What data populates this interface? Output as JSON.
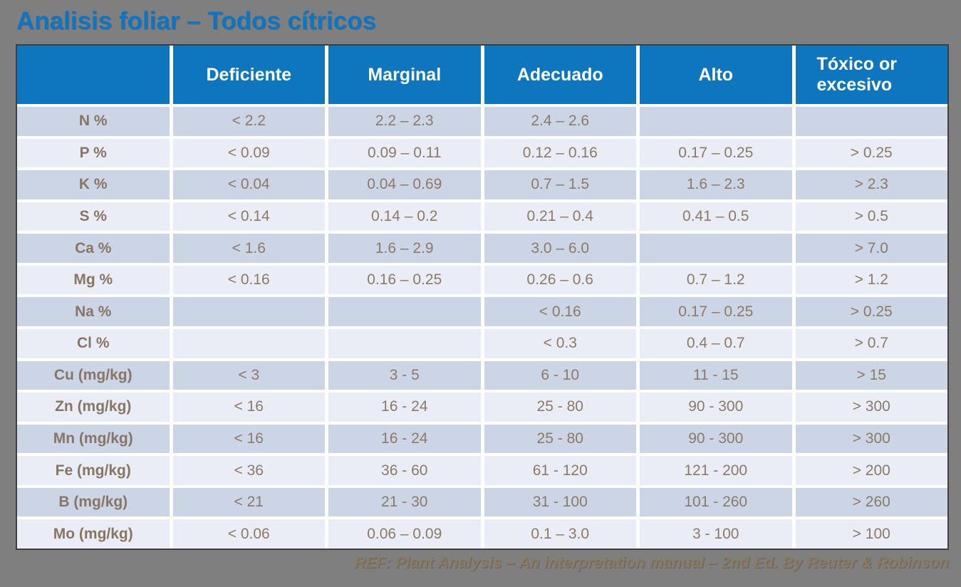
{
  "title": "Analisis foliar – Todos cítricos",
  "footer": "REF: Plant Analysis – An interpretation manual – 2nd Ed. By Reuter & Robinson",
  "colors": {
    "background": "#7f7f7f",
    "title_blue": "#0c76c2",
    "header_blue": "#0d76be",
    "header_text": "#ffffff",
    "row_dark": "#ccd5e6",
    "row_light": "#eaedf5",
    "cell_text": "#8b7a67",
    "footer_text": "#8a7a5f",
    "table_border": "#3f3f3f"
  },
  "chart_data": {
    "type": "table",
    "columns": [
      "",
      "Deficiente",
      "Marginal",
      "Adecuado",
      "Alto",
      "Tóxico or excesivo"
    ],
    "rows": [
      {
        "label": "N %",
        "values": [
          "< 2.2",
          "2.2 – 2.3",
          "2.4 – 2.6",
          "",
          ""
        ]
      },
      {
        "label": "P %",
        "values": [
          "< 0.09",
          "0.09 – 0.11",
          "0.12 – 0.16",
          "0.17 – 0.25",
          "> 0.25"
        ]
      },
      {
        "label": "K %",
        "values": [
          "< 0.04",
          "0.04 – 0.69",
          "0.7 – 1.5",
          "1.6 – 2.3",
          "> 2.3"
        ]
      },
      {
        "label": "S %",
        "values": [
          "< 0.14",
          "0.14 – 0.2",
          "0.21 – 0.4",
          "0.41 – 0.5",
          "> 0.5"
        ]
      },
      {
        "label": "Ca %",
        "values": [
          "< 1.6",
          "1.6 – 2.9",
          "3.0 – 6.0",
          "",
          "> 7.0"
        ]
      },
      {
        "label": "Mg %",
        "values": [
          "< 0.16",
          "0.16 – 0.25",
          "0.26 – 0.6",
          "0.7 – 1.2",
          "> 1.2"
        ]
      },
      {
        "label": "Na %",
        "values": [
          "",
          "",
          "< 0.16",
          "0.17 – 0.25",
          "> 0.25"
        ]
      },
      {
        "label": "Cl %",
        "values": [
          "",
          "",
          "< 0.3",
          "0.4 – 0.7",
          "> 0.7"
        ]
      },
      {
        "label": "Cu (mg/kg)",
        "values": [
          "< 3",
          "3 - 5",
          "6 - 10",
          "11 - 15",
          "> 15"
        ]
      },
      {
        "label": "Zn (mg/kg)",
        "values": [
          "< 16",
          "16 - 24",
          "25 - 80",
          "90 - 300",
          "> 300"
        ]
      },
      {
        "label": "Mn (mg/kg)",
        "values": [
          "< 16",
          "16 - 24",
          "25 - 80",
          "90 - 300",
          "> 300"
        ]
      },
      {
        "label": "Fe (mg/kg)",
        "values": [
          "< 36",
          "36 - 60",
          "61 - 120",
          "121 - 200",
          "> 200"
        ]
      },
      {
        "label": "B (mg/kg)",
        "values": [
          "< 21",
          "21 - 30",
          "31 - 100",
          "101 - 260",
          "> 260"
        ]
      },
      {
        "label": "Mo (mg/kg)",
        "values": [
          "< 0.06",
          "0.06 – 0.09",
          "0.1 – 3.0",
          "3 - 100",
          "> 100"
        ]
      }
    ]
  }
}
